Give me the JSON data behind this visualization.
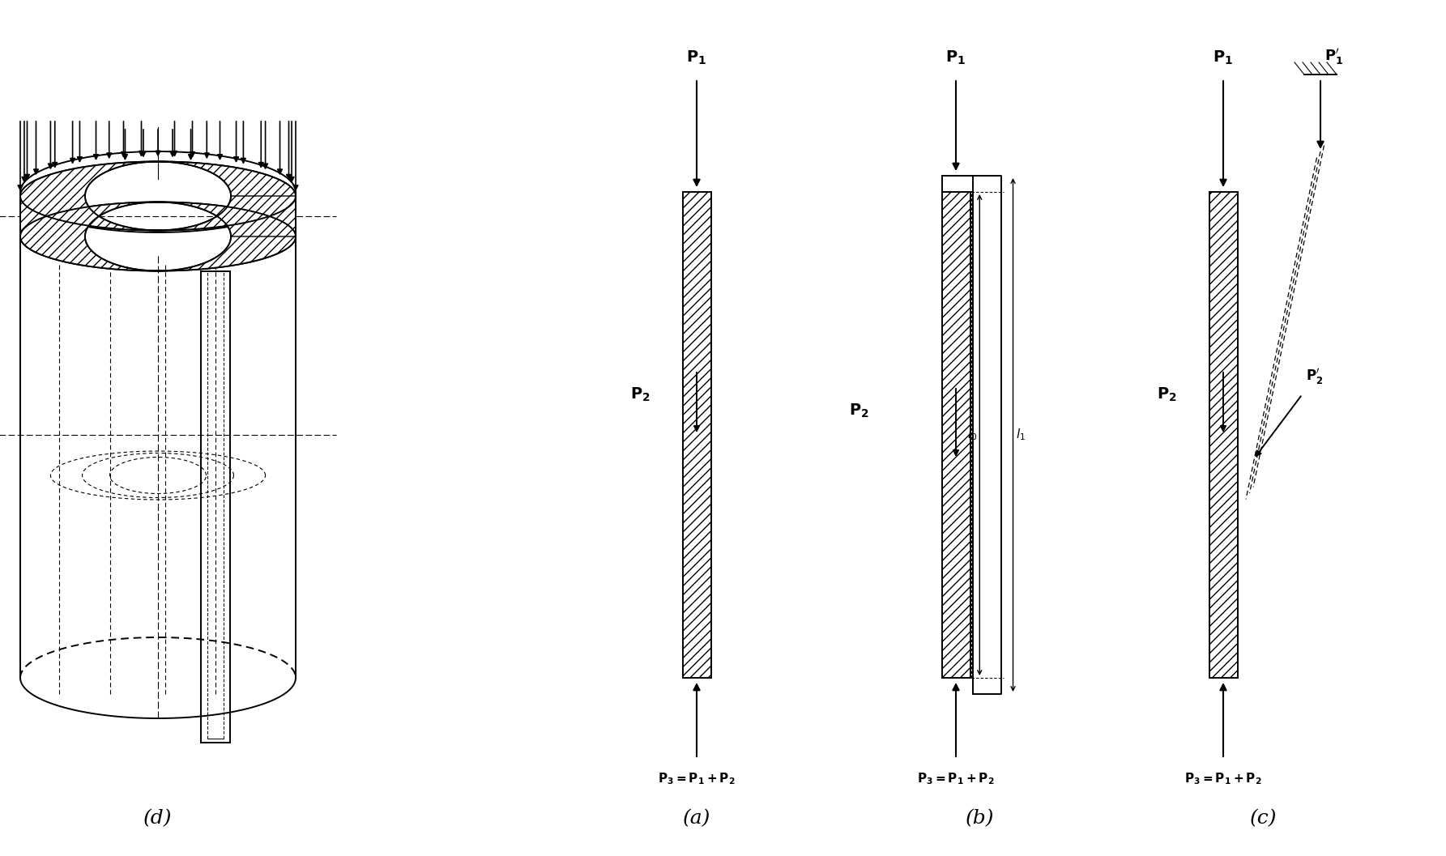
{
  "bg_color": "#ffffff",
  "line_color": "#000000",
  "hatch_pattern": "///",
  "fig_width": 17.85,
  "fig_height": 10.57,
  "label_a": "(a)",
  "label_b": "(b)",
  "label_c": "(c)",
  "label_d": "(d)"
}
